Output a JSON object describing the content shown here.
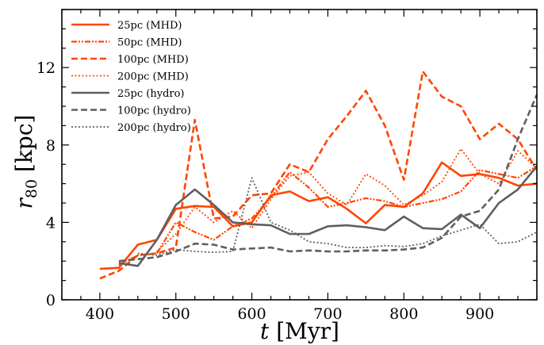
{
  "chart_data": {
    "type": "line",
    "title": "",
    "xlabel": {
      "var": "t",
      "unit": "[Myr]"
    },
    "ylabel": {
      "var": "r",
      "sub": "80",
      "unit": "[kpc]"
    },
    "xlim": [
      350,
      975
    ],
    "ylim": [
      0,
      15
    ],
    "xticks": [
      400,
      500,
      600,
      700,
      800,
      900
    ],
    "yticks": [
      0,
      4,
      8,
      12
    ],
    "legend_position": "upper-left",
    "grid": false,
    "series": [
      {
        "name": "25pc (MHD)",
        "color": "#ff4500",
        "style": "solid",
        "width": 2.6,
        "x": [
          400,
          425,
          450,
          475,
          500,
          525,
          550,
          575,
          600,
          625,
          650,
          675,
          700,
          725,
          750,
          775,
          800,
          825,
          850,
          875,
          900,
          925,
          950,
          975
        ],
        "y": [
          1.6,
          1.65,
          2.85,
          3.1,
          4.7,
          4.85,
          4.8,
          3.8,
          4.0,
          5.4,
          5.6,
          5.1,
          5.3,
          4.7,
          3.95,
          4.9,
          4.8,
          5.5,
          7.1,
          6.4,
          6.5,
          6.3,
          5.9,
          6.0
        ]
      },
      {
        "name": "50pc (MHD)",
        "color": "#ff4500",
        "style": "dashdot",
        "width": 2.2,
        "x": [
          425,
          450,
          475,
          500,
          525,
          550,
          575,
          600,
          625,
          650,
          675,
          700,
          725,
          750,
          775,
          800,
          825,
          850,
          875,
          900,
          925,
          950,
          975
        ],
        "y": [
          1.8,
          2.3,
          2.4,
          4.0,
          3.5,
          3.1,
          3.8,
          4.2,
          5.3,
          6.6,
          5.8,
          4.8,
          5.0,
          5.25,
          5.1,
          4.8,
          5.0,
          5.2,
          5.6,
          6.7,
          6.5,
          6.3,
          6.9
        ]
      },
      {
        "name": "100pc (MHD)",
        "color": "#ff4500",
        "style": "dashed",
        "width": 2.6,
        "x": [
          400,
          425,
          450,
          475,
          500,
          525,
          550,
          575,
          600,
          625,
          650,
          675,
          700,
          725,
          750,
          775,
          800,
          825,
          850,
          875,
          900,
          925,
          950,
          975
        ],
        "y": [
          1.1,
          1.5,
          2.3,
          2.4,
          2.7,
          9.3,
          4.2,
          4.3,
          5.4,
          5.5,
          7.0,
          6.6,
          8.3,
          9.5,
          10.8,
          9.0,
          6.2,
          11.8,
          10.5,
          10.0,
          8.3,
          9.1,
          8.3,
          6.7
        ]
      },
      {
        "name": "200pc (MHD)",
        "color": "#ff4500",
        "style": "dotted",
        "width": 1.8,
        "x": [
          475,
          500,
          525,
          550,
          575,
          600,
          625,
          650,
          675,
          700,
          725,
          750,
          775,
          800,
          825,
          850,
          875,
          900,
          925,
          950,
          975
        ],
        "y": [
          2.5,
          3.4,
          4.8,
          4.0,
          4.6,
          3.7,
          5.2,
          6.4,
          6.6,
          5.5,
          4.9,
          6.5,
          5.9,
          4.9,
          5.4,
          6.1,
          7.8,
          6.5,
          6.0,
          7.7,
          6.8
        ]
      },
      {
        "name": "25pc (hydro)",
        "color": "#5f5f5f",
        "style": "solid",
        "width": 2.6,
        "x": [
          425,
          450,
          475,
          500,
          525,
          550,
          575,
          600,
          625,
          650,
          675,
          700,
          725,
          750,
          775,
          800,
          825,
          850,
          875,
          900,
          925,
          950,
          975
        ],
        "y": [
          1.9,
          1.75,
          3.1,
          4.9,
          5.7,
          4.9,
          4.0,
          3.9,
          3.85,
          3.4,
          3.4,
          3.8,
          3.85,
          3.75,
          3.6,
          4.3,
          3.7,
          3.65,
          4.4,
          3.7,
          5.0,
          5.7,
          6.9
        ]
      },
      {
        "name": "100pc (hydro)",
        "color": "#5f5f5f",
        "style": "dashed",
        "width": 2.6,
        "x": [
          425,
          450,
          475,
          500,
          525,
          550,
          575,
          600,
          625,
          650,
          675,
          700,
          725,
          750,
          775,
          800,
          825,
          850,
          875,
          900,
          925,
          950,
          975
        ],
        "y": [
          2.0,
          2.1,
          2.2,
          2.5,
          2.9,
          2.85,
          2.6,
          2.65,
          2.7,
          2.5,
          2.55,
          2.5,
          2.5,
          2.55,
          2.55,
          2.6,
          2.7,
          3.2,
          4.3,
          4.6,
          5.7,
          8.3,
          10.6
        ]
      },
      {
        "name": "200pc (hydro)",
        "color": "#5f5f5f",
        "style": "dotted",
        "width": 1.8,
        "x": [
          450,
          475,
          500,
          525,
          550,
          575,
          600,
          625,
          650,
          675,
          700,
          725,
          750,
          775,
          800,
          825,
          850,
          875,
          900,
          925,
          950,
          975
        ],
        "y": [
          2.4,
          2.3,
          2.6,
          2.5,
          2.45,
          2.5,
          6.3,
          4.0,
          3.6,
          3.0,
          2.9,
          2.7,
          2.7,
          2.8,
          2.75,
          2.9,
          3.3,
          3.6,
          3.9,
          2.9,
          3.0,
          3.5
        ]
      }
    ]
  }
}
